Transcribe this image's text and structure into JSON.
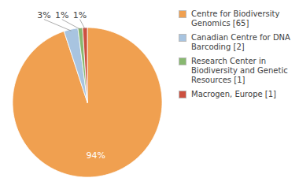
{
  "chart_data": {
    "type": "pie",
    "categories": [
      "Centre for Biodiversity\nGenomics [65]",
      "Canadian Centre for DNA\nBarcoding [2]",
      "Research Center in\nBiodiversity and Genetic\nResources [1]",
      "Macrogen, Europe [1]"
    ],
    "values": [
      94,
      3,
      1,
      1
    ],
    "value_labels": [
      "94%",
      "3%",
      "1%",
      "1%"
    ],
    "colors": [
      "#f0a050",
      "#a8c4e0",
      "#88b870",
      "#cc5040"
    ],
    "data_labels": true,
    "legend": "right"
  }
}
